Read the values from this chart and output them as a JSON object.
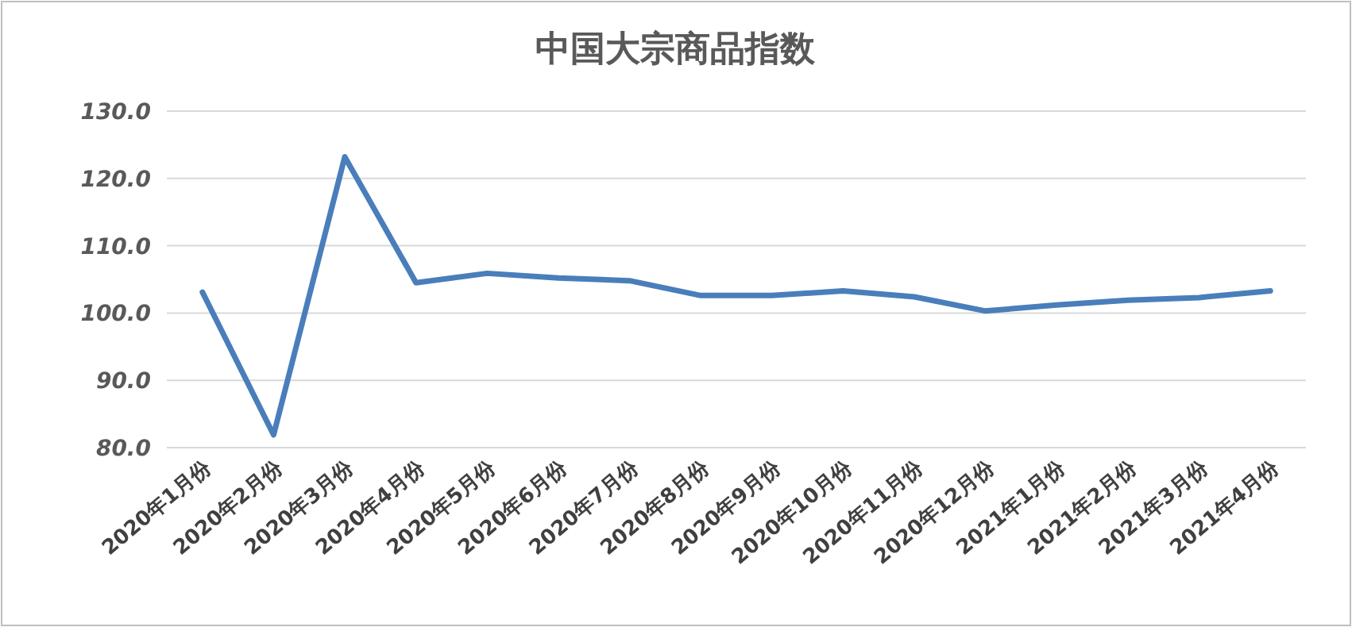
{
  "chart_data": {
    "type": "line",
    "title": "中国大宗商品指数",
    "categories": [
      "2020年1月份",
      "2020年2月份",
      "2020年3月份",
      "2020年4月份",
      "2020年5月份",
      "2020年6月份",
      "2020年7月份",
      "2020年8月份",
      "2020年9月份",
      "2020年10月份",
      "2020年11月份",
      "2020年12月份",
      "2021年1月份",
      "2021年2月份",
      "2021年3月份",
      "2021年4月份"
    ],
    "series": [
      {
        "color": "#4a7ebb",
        "values": [
          103.1,
          81.9,
          123.2,
          104.5,
          105.9,
          105.2,
          104.8,
          102.6,
          102.6,
          103.3,
          102.4,
          100.3,
          101.2,
          101.9,
          102.3,
          103.3
        ]
      }
    ],
    "ylim": [
      80,
      130
    ],
    "yticks": [
      {
        "value": 80,
        "label": "80.0"
      },
      {
        "value": 90,
        "label": "90.0"
      },
      {
        "value": 100,
        "label": "100.0"
      },
      {
        "value": 110,
        "label": "110.0"
      },
      {
        "value": 120,
        "label": "120.0"
      },
      {
        "value": 130,
        "label": "130.0"
      }
    ],
    "grid": "y",
    "marker": "none",
    "line_style": "solid"
  }
}
